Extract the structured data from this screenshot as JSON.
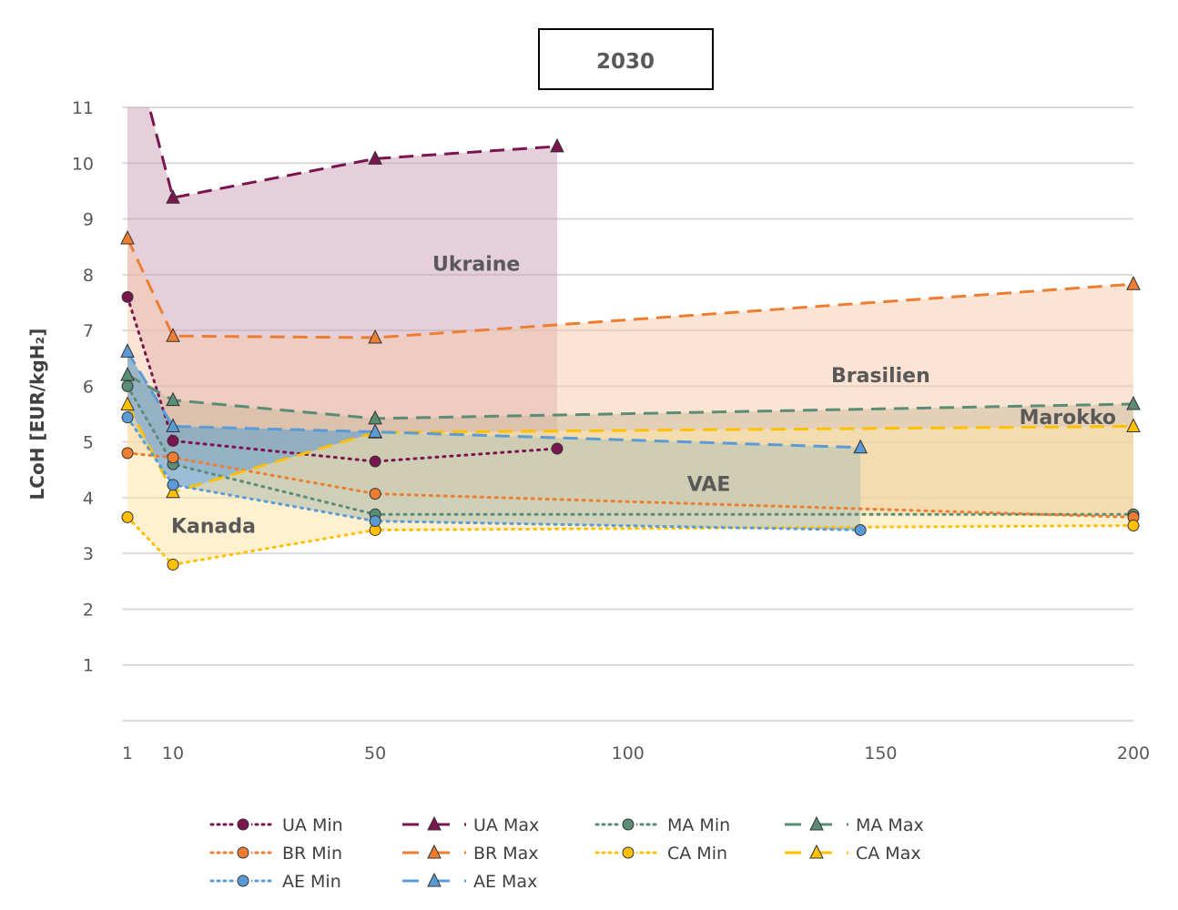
{
  "chart_data": {
    "type": "line",
    "title": "2030",
    "xlabel": "",
    "ylabel": "LCoH [EUR/kgH₂]",
    "xlim": [
      0,
      200
    ],
    "ylim": [
      0,
      11
    ],
    "xticks": [
      1,
      10,
      50,
      100,
      150,
      200
    ],
    "yticks": [
      1,
      2,
      3,
      4,
      5,
      6,
      7,
      8,
      9,
      10,
      11
    ],
    "grid": "horizontal",
    "legend_position": "bottom",
    "colors": {
      "UA": "#7B1550",
      "BR": "#ED7D31",
      "MA": "#5B8C75",
      "CA": "#FFC000",
      "AE": "#5B9BD5"
    },
    "regions": [
      {
        "label": "Ukraine",
        "min": "UA Min",
        "max": "UA Max",
        "fill": "#c9a0b7",
        "opacity": 0.5,
        "label_x": 70,
        "label_y": 8.2
      },
      {
        "label": "Brasilien",
        "min": "BR Min",
        "max": "BR Max",
        "fill": "#f8c9a8",
        "opacity": 0.5,
        "label_x": 150,
        "label_y": 6.2
      },
      {
        "label": "Marokko",
        "min": "MA Min",
        "max": "MA Max",
        "fill": "#b9ab8a",
        "opacity": 0.35,
        "label_x": 187,
        "label_y": 5.45
      },
      {
        "label": "VAE",
        "min": "AE Min",
        "max": "AE Max",
        "fill": "#7ba7c8",
        "opacity": 0.75,
        "label_x": 116,
        "label_y": 4.25
      },
      {
        "label": "Kanada",
        "min": "CA Min",
        "max": "CA Max",
        "fill": "#ffe5a8",
        "opacity": 0.55,
        "label_x": 18,
        "label_y": 3.5
      }
    ],
    "series": [
      {
        "name": "UA Min",
        "kind": "min",
        "country": "UA",
        "x": [
          1,
          10,
          50,
          86
        ],
        "y": [
          7.6,
          5.02,
          4.65,
          4.88
        ]
      },
      {
        "name": "UA Max",
        "kind": "max",
        "country": "UA",
        "x": [
          1,
          10,
          50,
          86
        ],
        "y": [
          12.5,
          9.38,
          10.08,
          10.3
        ]
      },
      {
        "name": "MA Min",
        "kind": "min",
        "country": "MA",
        "x": [
          1,
          10,
          50,
          200
        ],
        "y": [
          6.0,
          4.6,
          3.7,
          3.7
        ]
      },
      {
        "name": "MA Max",
        "kind": "max",
        "country": "MA",
        "x": [
          1,
          10,
          50,
          200
        ],
        "y": [
          6.2,
          5.75,
          5.42,
          5.68
        ]
      },
      {
        "name": "BR Min",
        "kind": "min",
        "country": "BR",
        "x": [
          1,
          10,
          50,
          200
        ],
        "y": [
          4.8,
          4.72,
          4.07,
          3.65
        ]
      },
      {
        "name": "BR Max",
        "kind": "max",
        "country": "BR",
        "x": [
          1,
          10,
          50,
          200
        ],
        "y": [
          8.65,
          6.9,
          6.87,
          7.83
        ]
      },
      {
        "name": "CA Min",
        "kind": "min",
        "country": "CA",
        "x": [
          1,
          10,
          50,
          200
        ],
        "y": [
          3.65,
          2.8,
          3.42,
          3.5
        ]
      },
      {
        "name": "CA Max",
        "kind": "max",
        "country": "CA",
        "x": [
          1,
          10,
          50,
          200
        ],
        "y": [
          5.67,
          4.1,
          5.17,
          5.28
        ]
      },
      {
        "name": "AE Min",
        "kind": "min",
        "country": "AE",
        "x": [
          1,
          10,
          50,
          146
        ],
        "y": [
          5.44,
          4.23,
          3.58,
          3.42
        ]
      },
      {
        "name": "AE Max",
        "kind": "max",
        "country": "AE",
        "x": [
          1,
          10,
          50,
          146
        ],
        "y": [
          6.62,
          5.28,
          5.18,
          4.9
        ]
      }
    ],
    "legend": [
      "UA Min",
      "UA Max",
      "MA Min",
      "MA Max",
      "BR Min",
      "BR Max",
      "CA Min",
      "CA Max",
      "AE Min",
      "AE Max"
    ]
  }
}
